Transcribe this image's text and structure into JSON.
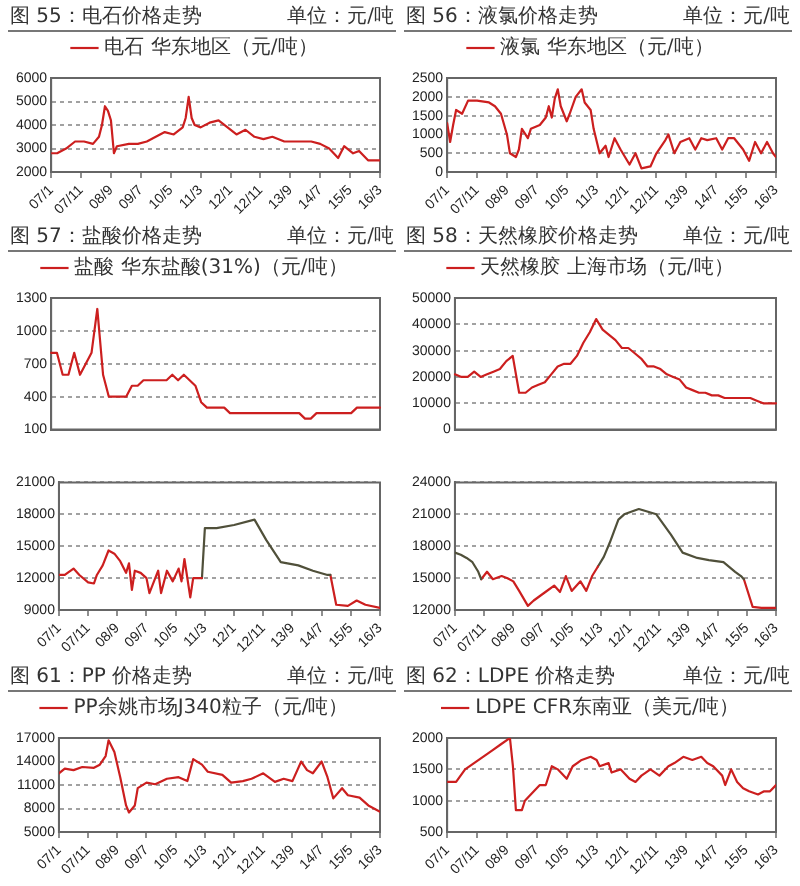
{
  "chart_data": [
    {
      "type": "line",
      "title": "图 55：电石价格走势",
      "annotations": [
        "单位：元/吨"
      ],
      "series": [
        {
          "name": "电石 华东地区（元/吨）",
          "color": "#cc1f1f",
          "x": [
            "2007-01",
            "2007-03",
            "2007-06",
            "2007-09",
            "2007-12",
            "2008-03",
            "2008-05",
            "2008-06",
            "2008-07",
            "2008-08",
            "2008-09",
            "2008-10",
            "2008-11",
            "2009-03",
            "2009-06",
            "2009-09",
            "2009-12",
            "2010-03",
            "2010-06",
            "2010-09",
            "2010-10",
            "2010-11",
            "2010-12",
            "2011-01",
            "2011-03",
            "2011-06",
            "2011-09",
            "2011-12",
            "2012-03",
            "2012-06",
            "2012-09",
            "2012-12",
            "2013-03",
            "2013-07",
            "2013-10",
            "2014-01",
            "2014-04",
            "2014-07",
            "2014-10",
            "2015-01",
            "2015-03",
            "2015-06",
            "2015-08",
            "2015-11",
            "2016-03"
          ],
          "values": [
            2800,
            2800,
            3000,
            3300,
            3300,
            3200,
            3500,
            4000,
            4800,
            4600,
            4200,
            2800,
            3100,
            3200,
            3200,
            3300,
            3500,
            3700,
            3600,
            3900,
            4300,
            5200,
            4300,
            4000,
            3900,
            4100,
            4200,
            3900,
            3600,
            3800,
            3500,
            3400,
            3500,
            3300,
            3300,
            3300,
            3300,
            3200,
            3000,
            2600,
            3100,
            2800,
            2900,
            2500,
            2500
          ]
        }
      ],
      "xlim": [
        "2007-01",
        "2016-03"
      ],
      "xticks": [
        {
          "value": "2007-01",
          "label": "07/1"
        },
        {
          "value": "2007-11",
          "label": "07/11"
        },
        {
          "value": "2008-09",
          "label": "08/9"
        },
        {
          "value": "2009-07",
          "label": "09/7"
        },
        {
          "value": "2010-05",
          "label": "10/5"
        },
        {
          "value": "2011-03",
          "label": "11/3"
        },
        {
          "value": "2012-01",
          "label": "12/1"
        },
        {
          "value": "2012-11",
          "label": "12/11"
        },
        {
          "value": "2013-09",
          "label": "13/9"
        },
        {
          "value": "2014-07",
          "label": "14/7"
        },
        {
          "value": "2015-05",
          "label": "15/5"
        },
        {
          "value": "2016-03",
          "label": "16/3"
        }
      ],
      "ylim": [
        2000,
        6000
      ],
      "yticks": [
        2000,
        3000,
        4000,
        5000,
        6000
      ],
      "grid": "y",
      "legend": "top"
    },
    {
      "type": "line",
      "title": "图 56：液氯价格走势",
      "annotations": [
        "单位：元/吨"
      ],
      "series": [
        {
          "name": "液氯 华东地区（元/吨）",
          "color": "#cc1f1f",
          "x": [
            "2007-01",
            "2007-02",
            "2007-03",
            "2007-04",
            "2007-06",
            "2007-08",
            "2007-11",
            "2008-03",
            "2008-05",
            "2008-07",
            "2008-09",
            "2008-10",
            "2008-12",
            "2009-01",
            "2009-02",
            "2009-04",
            "2009-05",
            "2009-08",
            "2009-10",
            "2009-11",
            "2009-12",
            "2010-01",
            "2010-02",
            "2010-03",
            "2010-05",
            "2010-06",
            "2010-08",
            "2010-10",
            "2010-11",
            "2011-01",
            "2011-02",
            "2011-04",
            "2011-06",
            "2011-07",
            "2011-09",
            "2011-11",
            "2012-02",
            "2012-04",
            "2012-06",
            "2012-09",
            "2012-11",
            "2013-02",
            "2013-03",
            "2013-05",
            "2013-07",
            "2013-10",
            "2013-12",
            "2014-02",
            "2014-04",
            "2014-07",
            "2014-09",
            "2014-11",
            "2015-01",
            "2015-04",
            "2015-06",
            "2015-08",
            "2015-10",
            "2015-12",
            "2016-02",
            "2016-03"
          ],
          "values": [
            1300,
            800,
            1250,
            1650,
            1550,
            1900,
            1900,
            1850,
            1750,
            1550,
            1000,
            500,
            400,
            600,
            1150,
            900,
            1150,
            1250,
            1450,
            1750,
            1450,
            1950,
            2200,
            1750,
            1350,
            1550,
            2000,
            2200,
            1850,
            1650,
            1150,
            500,
            700,
            400,
            900,
            600,
            200,
            500,
            100,
            150,
            500,
            850,
            1000,
            500,
            800,
            900,
            600,
            900,
            850,
            900,
            600,
            900,
            900,
            600,
            300,
            800,
            500,
            800,
            500,
            400
          ]
        }
      ],
      "xlim": [
        "2007-01",
        "2016-03"
      ],
      "xticks": [
        {
          "value": "2007-01",
          "label": "07/1"
        },
        {
          "value": "2007-11",
          "label": "07/11"
        },
        {
          "value": "2008-09",
          "label": "08/9"
        },
        {
          "value": "2009-07",
          "label": "09/7"
        },
        {
          "value": "2010-05",
          "label": "10/5"
        },
        {
          "value": "2011-03",
          "label": "11/3"
        },
        {
          "value": "2012-01",
          "label": "12/1"
        },
        {
          "value": "2012-11",
          "label": "12/11"
        },
        {
          "value": "2013-09",
          "label": "13/9"
        },
        {
          "value": "2014-07",
          "label": "14/7"
        },
        {
          "value": "2015-05",
          "label": "15/5"
        },
        {
          "value": "2016-03",
          "label": "16/3"
        }
      ],
      "ylim": [
        0,
        2500
      ],
      "yticks": [
        0,
        500,
        1000,
        1500,
        2000,
        2500
      ],
      "grid": "y",
      "legend": "top"
    },
    {
      "type": "line",
      "title": "图 57：盐酸价格走势",
      "annotations": [
        "单位：元/吨"
      ],
      "categories": [
        null,
        null,
        null,
        null,
        null,
        null,
        null,
        null,
        null,
        null,
        null,
        null,
        null,
        null,
        null,
        null,
        null,
        null,
        null,
        null,
        null,
        null,
        null,
        null,
        null,
        null,
        null,
        null,
        null,
        null,
        null,
        null,
        null,
        null,
        null,
        null,
        null,
        null,
        null,
        null,
        null,
        null,
        null,
        null,
        null,
        null,
        null,
        null,
        null,
        null,
        null,
        null,
        null,
        null,
        null,
        null,
        null,
        null
      ],
      "series": [
        {
          "name": "盐酸 华东盐酸(31%)（元/吨）",
          "color": "#cc1f1f",
          "values": [
            800,
            800,
            600,
            600,
            800,
            600,
            700,
            800,
            1200,
            600,
            400,
            400,
            400,
            400,
            500,
            500,
            550,
            550,
            550,
            550,
            550,
            600,
            550,
            600,
            550,
            500,
            350,
            300,
            300,
            300,
            300,
            250,
            250,
            250,
            250,
            250,
            250,
            250,
            250,
            250,
            250,
            250,
            250,
            250,
            200,
            200,
            250,
            250,
            250,
            250,
            250,
            250,
            250,
            300,
            300,
            300,
            300,
            300
          ]
        }
      ],
      "ylim": [
        100,
        1300
      ],
      "yticks": [
        100,
        400,
        700,
        1000,
        1300
      ],
      "grid": "y",
      "legend": "top",
      "tick_labels": "y"
    },
    {
      "type": "line",
      "title": "图 58：天然橡胶价格走势",
      "annotations": [
        "单位：元/吨"
      ],
      "categories": [
        null,
        null,
        null,
        null,
        null,
        null,
        null,
        null,
        null,
        null,
        null,
        null,
        null,
        null,
        null,
        null,
        null,
        null,
        null,
        null,
        null,
        null,
        null,
        null,
        null,
        null,
        null,
        null,
        null,
        null,
        null,
        null,
        null,
        null,
        null,
        null,
        null,
        null,
        null,
        null,
        null,
        null,
        null,
        null,
        null,
        null,
        null,
        null,
        null,
        null,
        null
      ],
      "series": [
        {
          "name": "天然橡胶 上海市场（元/吨）",
          "color": "#cc1f1f",
          "values": [
            21000,
            20000,
            20000,
            22000,
            20000,
            21000,
            22000,
            23000,
            26000,
            28000,
            14000,
            14000,
            16000,
            17000,
            18000,
            21000,
            24000,
            25000,
            25000,
            28000,
            33000,
            37000,
            42000,
            38000,
            36000,
            34000,
            31000,
            31000,
            29000,
            27000,
            24000,
            24000,
            23000,
            21000,
            20000,
            19000,
            16000,
            15000,
            14000,
            14000,
            13000,
            13000,
            12000,
            12000,
            12000,
            12000,
            12000,
            11000,
            10000,
            10000,
            10000
          ]
        }
      ],
      "ylim": [
        0,
        50000
      ],
      "yticks": [
        0,
        10000,
        20000,
        30000,
        40000,
        50000
      ],
      "grid": "y",
      "legend": "top",
      "tick_labels": "y"
    },
    {
      "type": "line",
      "series": [
        {
          "color": "#cc1f1f",
          "x": [
            "2007-01",
            "2007-03",
            "2007-06",
            "2007-08",
            "2007-11",
            "2008-01",
            "2008-02",
            "2008-04",
            "2008-06",
            "2008-08",
            "2008-10",
            "2008-12",
            "2009-01",
            "2009-02",
            "2009-03",
            "2009-05",
            "2009-07",
            "2009-08",
            "2009-11",
            "2009-12",
            "2010-02",
            "2010-04",
            "2010-06",
            "2010-07",
            "2010-08",
            "2010-10",
            "2010-11",
            "2011-01",
            "2011-02"
          ],
          "values": [
            12300,
            12300,
            12900,
            12300,
            11600,
            11500,
            12300,
            13200,
            14600,
            14300,
            13600,
            12500,
            13400,
            10900,
            12700,
            12500,
            12000,
            10600,
            12700,
            10600,
            12700,
            11700,
            12900,
            11700,
            13800,
            10200,
            12000,
            12000,
            12000
          ]
        },
        {
          "color": "#50503a",
          "x": [
            "2011-02",
            "2011-03",
            "2011-07",
            "2012-01",
            "2012-08",
            "2012-12",
            "2013-05",
            "2013-11",
            "2014-04",
            "2014-09",
            "2014-10"
          ],
          "values": [
            12000,
            16700,
            16700,
            17000,
            17500,
            15600,
            13500,
            13200,
            12700,
            12300,
            12300
          ]
        },
        {
          "color": "#cc1f1f",
          "x": [
            "2014-10",
            "2014-12",
            "2015-04",
            "2015-07",
            "2015-10",
            "2016-03"
          ],
          "values": [
            12300,
            9500,
            9400,
            9900,
            9500,
            9200
          ]
        }
      ],
      "xlim": [
        "2007-01",
        "2016-03"
      ],
      "xticks": [
        {
          "value": "2007-01",
          "label": "07/1"
        },
        {
          "value": "2007-11",
          "label": "07/11"
        },
        {
          "value": "2008-09",
          "label": "08/9"
        },
        {
          "value": "2009-07",
          "label": "09/7"
        },
        {
          "value": "2010-05",
          "label": "10/5"
        },
        {
          "value": "2011-03",
          "label": "11/3"
        },
        {
          "value": "2012-01",
          "label": "12/1"
        },
        {
          "value": "2012-11",
          "label": "12/11"
        },
        {
          "value": "2013-09",
          "label": "13/9"
        },
        {
          "value": "2014-07",
          "label": "14/7"
        },
        {
          "value": "2015-05",
          "label": "15/5"
        },
        {
          "value": "2016-03",
          "label": "16/3"
        }
      ],
      "ylim": [
        9000,
        21000
      ],
      "yticks": [
        9000,
        12000,
        15000,
        18000,
        21000
      ],
      "grid": "y"
    },
    {
      "type": "line",
      "series": [
        {
          "color": "#50503a",
          "x": [
            "2007-01",
            "2007-03",
            "2007-05",
            "2007-07",
            "2007-09",
            "2007-10"
          ],
          "values": [
            17400,
            17200,
            16900,
            16500,
            15600,
            14900
          ]
        },
        {
          "color": "#cc1f1f",
          "x": [
            "2007-10",
            "2007-12",
            "2008-02",
            "2008-05",
            "2008-07",
            "2008-09",
            "2008-11",
            "2009-02",
            "2009-04",
            "2009-06",
            "2009-08",
            "2009-11",
            "2010-01",
            "2010-03",
            "2010-05",
            "2010-08",
            "2010-10",
            "2010-12",
            "2011-02"
          ],
          "values": [
            14900,
            15600,
            14900,
            15200,
            15000,
            14700,
            13800,
            12400,
            12900,
            13300,
            13700,
            14300,
            13700,
            15200,
            13800,
            14700,
            13800,
            15200,
            16100
          ]
        },
        {
          "color": "#50503a",
          "x": [
            "2011-02",
            "2011-04",
            "2011-06",
            "2011-09",
            "2011-11",
            "2012-04",
            "2012-10",
            "2013-03",
            "2013-07",
            "2013-12",
            "2014-04",
            "2014-09",
            "2015-01",
            "2015-03",
            "2015-04"
          ],
          "values": [
            16100,
            17000,
            18300,
            20500,
            21000,
            21500,
            21000,
            19100,
            17400,
            16900,
            16700,
            16500,
            15600,
            15200,
            14900
          ]
        },
        {
          "color": "#cc1f1f",
          "x": [
            "2015-04",
            "2015-07",
            "2015-10",
            "2016-03"
          ],
          "values": [
            14900,
            12300,
            12200,
            12200
          ]
        }
      ],
      "xlim": [
        "2007-01",
        "2016-03"
      ],
      "xticks": [
        {
          "value": "2007-01",
          "label": "07/1"
        },
        {
          "value": "2007-11",
          "label": "07/11"
        },
        {
          "value": "2008-09",
          "label": "08/9"
        },
        {
          "value": "2009-07",
          "label": "09/7"
        },
        {
          "value": "2010-05",
          "label": "10/5"
        },
        {
          "value": "2011-03",
          "label": "11/3"
        },
        {
          "value": "2012-01",
          "label": "12/1"
        },
        {
          "value": "2012-11",
          "label": "12/11"
        },
        {
          "value": "2013-09",
          "label": "13/9"
        },
        {
          "value": "2014-07",
          "label": "14/7"
        },
        {
          "value": "2015-05",
          "label": "15/5"
        },
        {
          "value": "2016-03",
          "label": "16/3"
        }
      ],
      "ylim": [
        12000,
        24000
      ],
      "yticks": [
        12000,
        15000,
        18000,
        21000,
        24000
      ],
      "grid": "y"
    },
    {
      "type": "line",
      "title": "图 61：PP 价格走势",
      "annotations": [
        "单位：元/吨"
      ],
      "series": [
        {
          "name": "PP余姚市场J340粒子（元/吨）",
          "color": "#cc1f1f",
          "x": [
            "2007-01",
            "2007-03",
            "2007-06",
            "2007-09",
            "2008-01",
            "2008-03",
            "2008-05",
            "2008-06",
            "2008-08",
            "2008-10",
            "2008-12",
            "2009-01",
            "2009-03",
            "2009-04",
            "2009-07",
            "2009-10",
            "2010-02",
            "2010-06",
            "2010-09",
            "2010-11",
            "2011-02",
            "2011-04",
            "2011-09",
            "2011-12",
            "2012-04",
            "2012-07",
            "2012-11",
            "2013-03",
            "2013-06",
            "2013-09",
            "2013-12",
            "2014-02",
            "2014-04",
            "2014-07",
            "2014-09",
            "2014-11",
            "2015-02",
            "2015-04",
            "2015-08",
            "2015-11",
            "2016-03"
          ],
          "values": [
            12500,
            13100,
            12900,
            13300,
            13200,
            13600,
            14700,
            16700,
            15200,
            12000,
            8400,
            7500,
            8400,
            10600,
            11300,
            11100,
            11800,
            12000,
            11500,
            14300,
            13600,
            12700,
            12300,
            11300,
            11500,
            11800,
            12500,
            11400,
            11800,
            11500,
            14000,
            12900,
            12500,
            14000,
            12000,
            9300,
            10600,
            9700,
            9400,
            8400,
            7600
          ]
        }
      ],
      "xlim": [
        "2007-01",
        "2016-03"
      ],
      "xticks": [
        {
          "value": "2007-01",
          "label": "07/1"
        },
        {
          "value": "2007-11",
          "label": "07/11"
        },
        {
          "value": "2008-09",
          "label": "08/9"
        },
        {
          "value": "2009-07",
          "label": "09/7"
        },
        {
          "value": "2010-05",
          "label": "10/5"
        },
        {
          "value": "2011-03",
          "label": "11/3"
        },
        {
          "value": "2012-01",
          "label": "12/1"
        },
        {
          "value": "2012-11",
          "label": "12/11"
        },
        {
          "value": "2013-09",
          "label": "13/9"
        },
        {
          "value": "2014-07",
          "label": "14/7"
        },
        {
          "value": "2015-05",
          "label": "15/5"
        },
        {
          "value": "2016-03",
          "label": "16/3"
        }
      ],
      "ylim": [
        5000,
        17000
      ],
      "yticks": [
        5000,
        8000,
        11000,
        14000,
        17000
      ],
      "grid": "y",
      "legend": "top"
    },
    {
      "type": "line",
      "title": "图 62：LDPE 价格走势",
      "annotations": [
        "单位：元/吨"
      ],
      "series": [
        {
          "name": "LDPE CFR东南亚（美元/吨）",
          "color": "#cc1f1f",
          "x": [
            "2007-01",
            "2007-04",
            "2007-07",
            "2007-10",
            "2008-01",
            "2008-04",
            "2008-07",
            "2008-10",
            "2008-11",
            "2008-12",
            "2009-02",
            "2009-03",
            "2009-06",
            "2009-08",
            "2009-10",
            "2009-12",
            "2010-02",
            "2010-05",
            "2010-07",
            "2010-10",
            "2011-01",
            "2011-03",
            "2011-04",
            "2011-07",
            "2011-08",
            "2011-11",
            "2012-02",
            "2012-04",
            "2012-06",
            "2012-09",
            "2012-12",
            "2013-03",
            "2013-05",
            "2013-08",
            "2013-11",
            "2014-02",
            "2014-04",
            "2014-06",
            "2014-09",
            "2014-10",
            "2014-12",
            "2015-02",
            "2015-04",
            "2015-06",
            "2015-09",
            "2015-11",
            "2016-01",
            "2016-03"
          ],
          "values": [
            1300,
            1300,
            1500,
            1600,
            1700,
            1800,
            1900,
            2000,
            1550,
            850,
            850,
            1000,
            1150,
            1250,
            1250,
            1550,
            1500,
            1350,
            1550,
            1650,
            1700,
            1650,
            1550,
            1600,
            1450,
            1500,
            1350,
            1300,
            1400,
            1500,
            1400,
            1550,
            1600,
            1700,
            1650,
            1700,
            1600,
            1550,
            1400,
            1250,
            1500,
            1300,
            1200,
            1150,
            1100,
            1150,
            1150,
            1250
          ]
        }
      ],
      "xlim": [
        "2007-01",
        "2016-03"
      ],
      "xticks": [
        {
          "value": "2007-01",
          "label": "07/1"
        },
        {
          "value": "2007-11",
          "label": "07/11"
        },
        {
          "value": "2008-09",
          "label": "08/9"
        },
        {
          "value": "2009-07",
          "label": "09/7"
        },
        {
          "value": "2010-05",
          "label": "10/5"
        },
        {
          "value": "2011-03",
          "label": "11/3"
        },
        {
          "value": "2012-01",
          "label": "12/1"
        },
        {
          "value": "2012-11",
          "label": "12/11"
        },
        {
          "value": "2013-09",
          "label": "13/9"
        },
        {
          "value": "2014-07",
          "label": "14/7"
        },
        {
          "value": "2015-05",
          "label": "15/5"
        },
        {
          "value": "2016-03",
          "label": "16/3"
        }
      ],
      "ylim": [
        500,
        2000
      ],
      "yticks": [
        500,
        1000,
        1500,
        2000
      ],
      "grid": "y",
      "legend": "top"
    }
  ]
}
